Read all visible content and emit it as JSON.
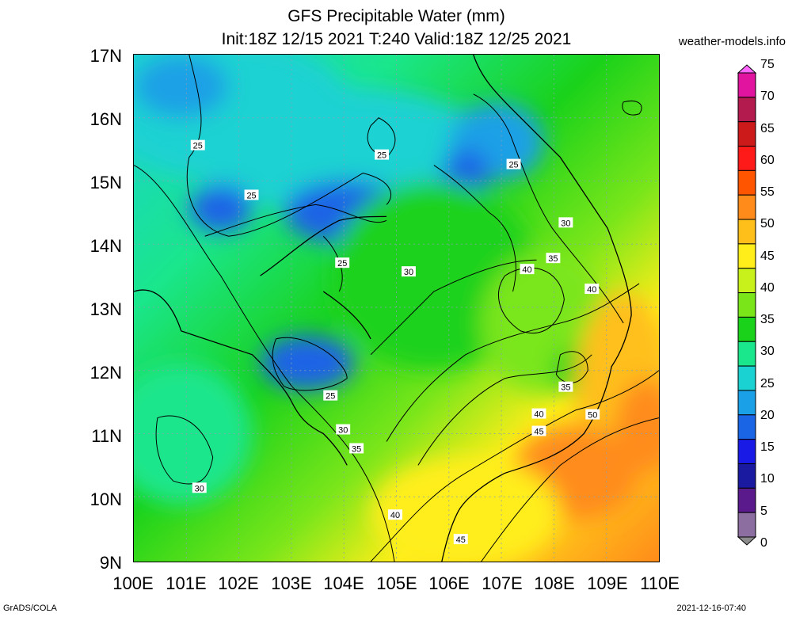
{
  "title_line1": "GFS Precipitable Water (mm)",
  "title_line2": "Init:18Z 12/15 2021 T:240 Valid:18Z 12/25 2021",
  "site": "weather-models.info",
  "footer_left": "GrADS/COLA",
  "footer_right": "2021-12-16-07:40",
  "lat_labels": [
    "17N",
    "16N",
    "15N",
    "14N",
    "13N",
    "12N",
    "11N",
    "10N",
    "9N"
  ],
  "lon_labels": [
    "100E",
    "101E",
    "102E",
    "103E",
    "104E",
    "105E",
    "106E",
    "107E",
    "108E",
    "109E",
    "110E"
  ],
  "colorbar": {
    "labels": [
      "75",
      "70",
      "65",
      "60",
      "55",
      "50",
      "45",
      "40",
      "35",
      "30",
      "25",
      "20",
      "15",
      "10",
      "5",
      "0"
    ],
    "colors": [
      "#ff66ff",
      "#e0149e",
      "#b31a4d",
      "#cc1a1a",
      "#ff1a1a",
      "#ff5500",
      "#ff8c1a",
      "#ffbf1a",
      "#ffee1a",
      "#c8f01a",
      "#7ae61a",
      "#1ad21a",
      "#1ae68c",
      "#1ad2d2",
      "#1aa0e6",
      "#1a64e6",
      "#1a1ae6",
      "#1a1aa0",
      "#5a1a8c",
      "#8c6ea0",
      "#8c8c8c"
    ]
  },
  "contour_labels": [
    {
      "text": "25"
    },
    {
      "text": "25"
    },
    {
      "text": "25"
    },
    {
      "text": "25"
    },
    {
      "text": "25"
    },
    {
      "text": "25"
    },
    {
      "text": "30"
    },
    {
      "text": "30"
    },
    {
      "text": "30"
    },
    {
      "text": "30"
    },
    {
      "text": "35"
    },
    {
      "text": "35"
    },
    {
      "text": "35"
    },
    {
      "text": "40"
    },
    {
      "text": "40"
    },
    {
      "text": "40"
    },
    {
      "text": "40"
    },
    {
      "text": "45"
    },
    {
      "text": "45"
    },
    {
      "text": "50"
    }
  ]
}
